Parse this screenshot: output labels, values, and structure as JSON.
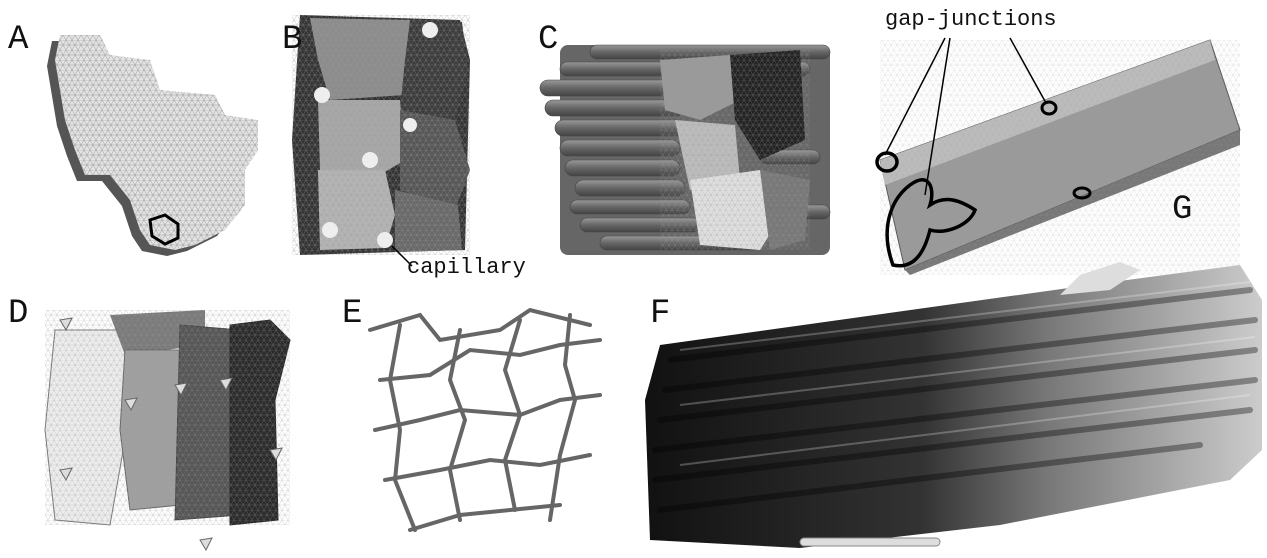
{
  "panels": [
    {
      "label": "A"
    },
    {
      "label": "B"
    },
    {
      "label": "C"
    },
    {
      "label": "D"
    },
    {
      "label": "E"
    },
    {
      "label": "F"
    },
    {
      "label": "G"
    }
  ],
  "annotations": {
    "capillary": "capillary",
    "gap_junctions": "gap-junctions"
  }
}
